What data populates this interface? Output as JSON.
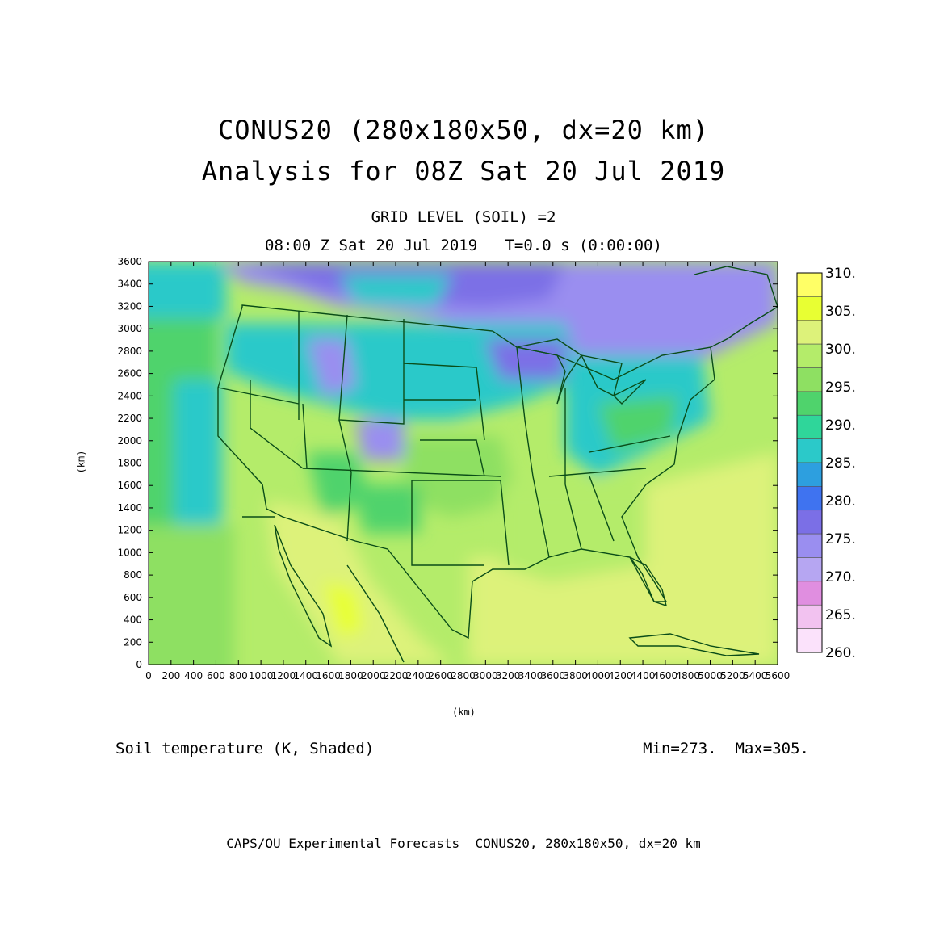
{
  "titles": {
    "line1": "CONUS20 (280x180x50, dx=20 km)",
    "line2": "Analysis for 08Z Sat 20 Jul 2019",
    "sub1": "GRID LEVEL (SOIL) =2",
    "sub2": "08:00 Z Sat 20 Jul 2019   T=0.0 s (0:00:00)"
  },
  "axes": {
    "x_unit": "(km)",
    "y_unit": "(km)",
    "x_ticks": [
      0,
      200,
      400,
      600,
      800,
      1000,
      1200,
      1400,
      1600,
      1800,
      2000,
      2200,
      2400,
      2600,
      2800,
      3000,
      3200,
      3400,
      3600,
      3800,
      4000,
      4200,
      4400,
      4600,
      4800,
      5000,
      5200,
      5400,
      5600
    ],
    "y_ticks": [
      0,
      200,
      400,
      600,
      800,
      1000,
      1200,
      1400,
      1600,
      1800,
      2000,
      2200,
      2400,
      2600,
      2800,
      3000,
      3200,
      3400,
      3600
    ],
    "xlim": [
      0,
      5600
    ],
    "ylim": [
      0,
      3600
    ]
  },
  "colorbar": {
    "labels": [
      "310.",
      "305.",
      "300.",
      "295.",
      "290.",
      "285.",
      "280.",
      "275.",
      "270.",
      "265.",
      "260."
    ],
    "colors": [
      "#ffff66",
      "#e8ff33",
      "#ddf27a",
      "#b4ec6a",
      "#8ee062",
      "#4fd36c",
      "#2fd69a",
      "#2bc9c9",
      "#2d9fdf",
      "#3f73f0",
      "#7b6fe6",
      "#9a8ef0",
      "#b6a6f2",
      "#e08ee0",
      "#f2c2f0",
      "#fbe2fb"
    ]
  },
  "field": {
    "variable_label": "Soil temperature (K, Shaded)",
    "minmax_label": "Min=273.  Max=305."
  },
  "footer": "CAPS/OU Experimental Forecasts  CONUS20, 280x180x50, dx=20 km"
}
